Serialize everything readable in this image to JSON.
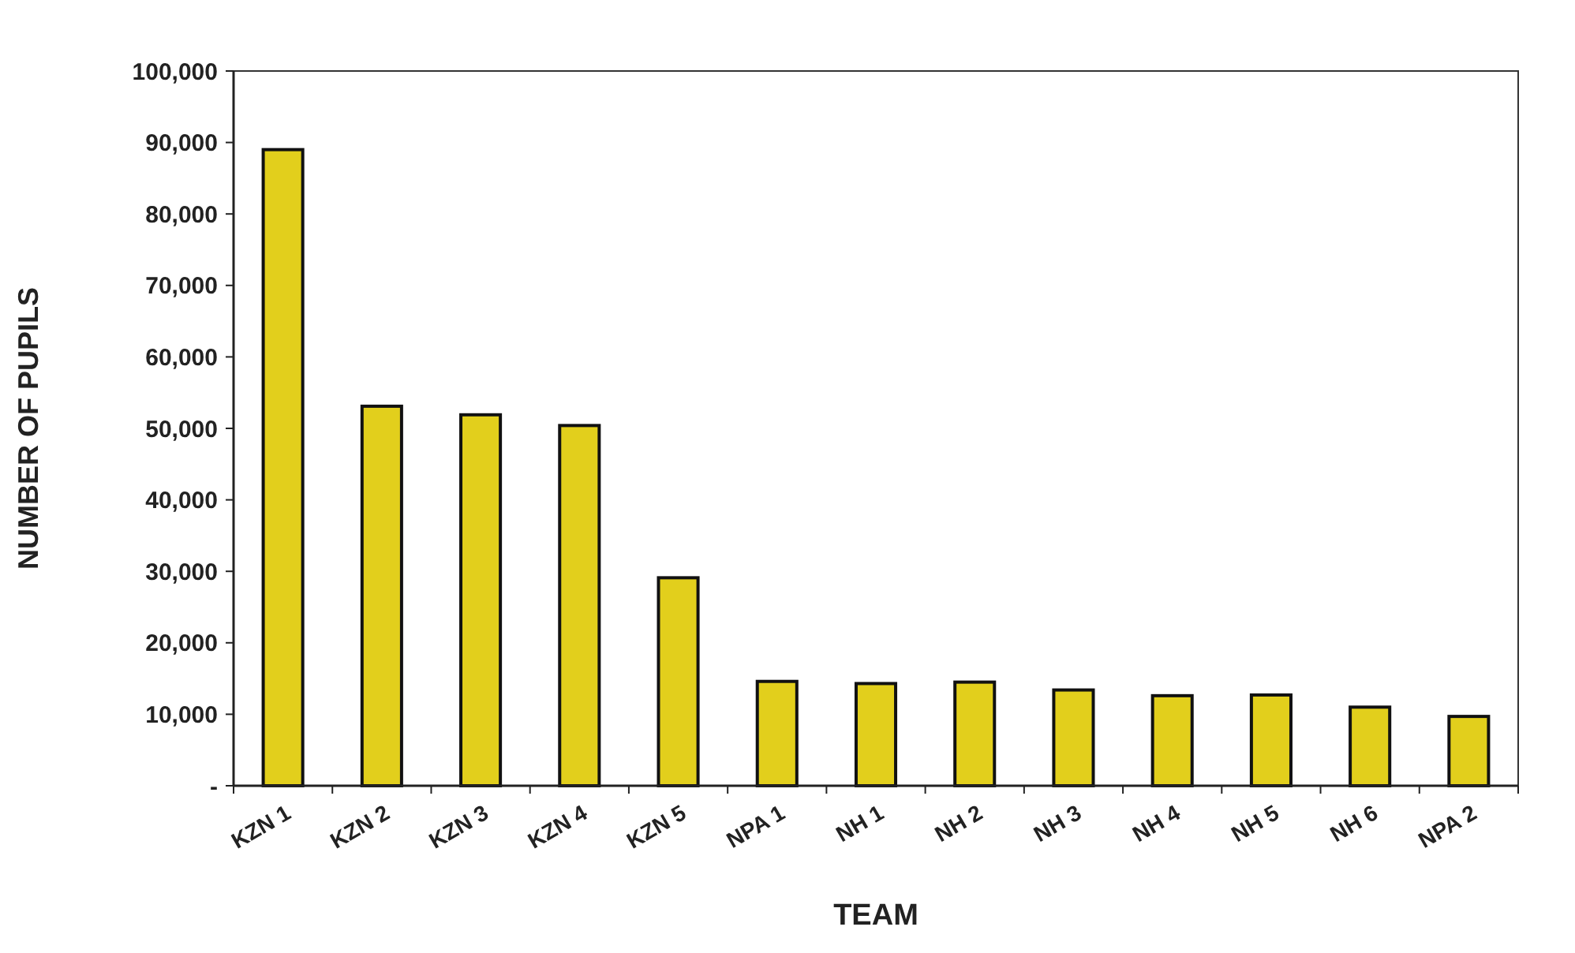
{
  "chart_data": {
    "type": "bar",
    "xlabel": "TEAM",
    "ylabel": "NUMBER OF PUPILS",
    "categories": [
      "KZN 1",
      "KZN 2",
      "KZN 3",
      "KZN 4",
      "KZN 5",
      "NPA 1",
      "NH 1",
      "NH 2",
      "NH 3",
      "NH 4",
      "NH 5",
      "NH 6",
      "NPA 2"
    ],
    "values": [
      89000,
      53100,
      51900,
      50400,
      29100,
      14600,
      14300,
      14500,
      13400,
      12600,
      12700,
      11000,
      9700
    ],
    "color": "#e2cf1c",
    "ylim": [
      0,
      100000
    ],
    "yticks": [
      {
        "value": 0,
        "label": "-"
      },
      {
        "value": 10000,
        "label": "10,000"
      },
      {
        "value": 20000,
        "label": "20,000"
      },
      {
        "value": 30000,
        "label": "30,000"
      },
      {
        "value": 40000,
        "label": "40,000"
      },
      {
        "value": 50000,
        "label": "50,000"
      },
      {
        "value": 60000,
        "label": "60,000"
      },
      {
        "value": 70000,
        "label": "70,000"
      },
      {
        "value": 80000,
        "label": "80,000"
      },
      {
        "value": 90000,
        "label": "90,000"
      },
      {
        "value": 100000,
        "label": "100,000"
      }
    ],
    "grid": false
  }
}
